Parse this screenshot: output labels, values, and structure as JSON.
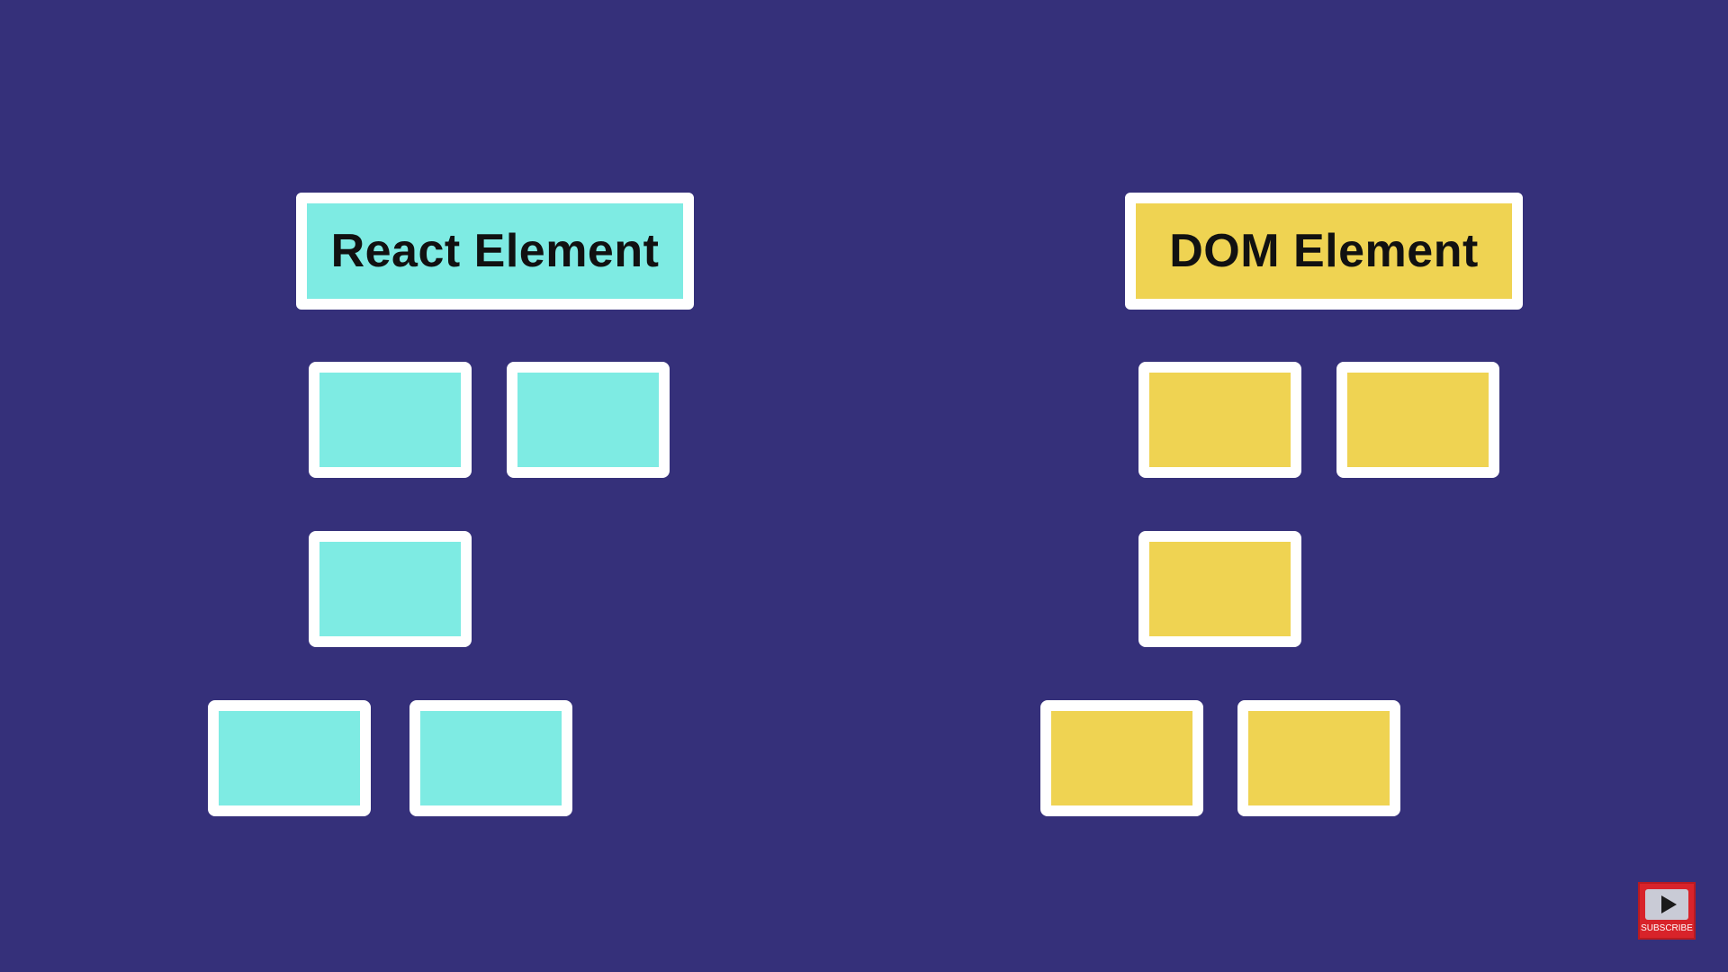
{
  "colors": {
    "background": "#35307a",
    "react_node": "#7eebe3",
    "dom_node": "#efd352",
    "border": "#ffffff",
    "subscribe_bg": "#d8232a"
  },
  "react_tree": {
    "title": "React Element",
    "node_count": 5
  },
  "dom_tree": {
    "title": "DOM Element",
    "node_count": 5
  },
  "subscribe_badge": {
    "label": "SUBSCRIBE",
    "icon": "play-icon"
  }
}
